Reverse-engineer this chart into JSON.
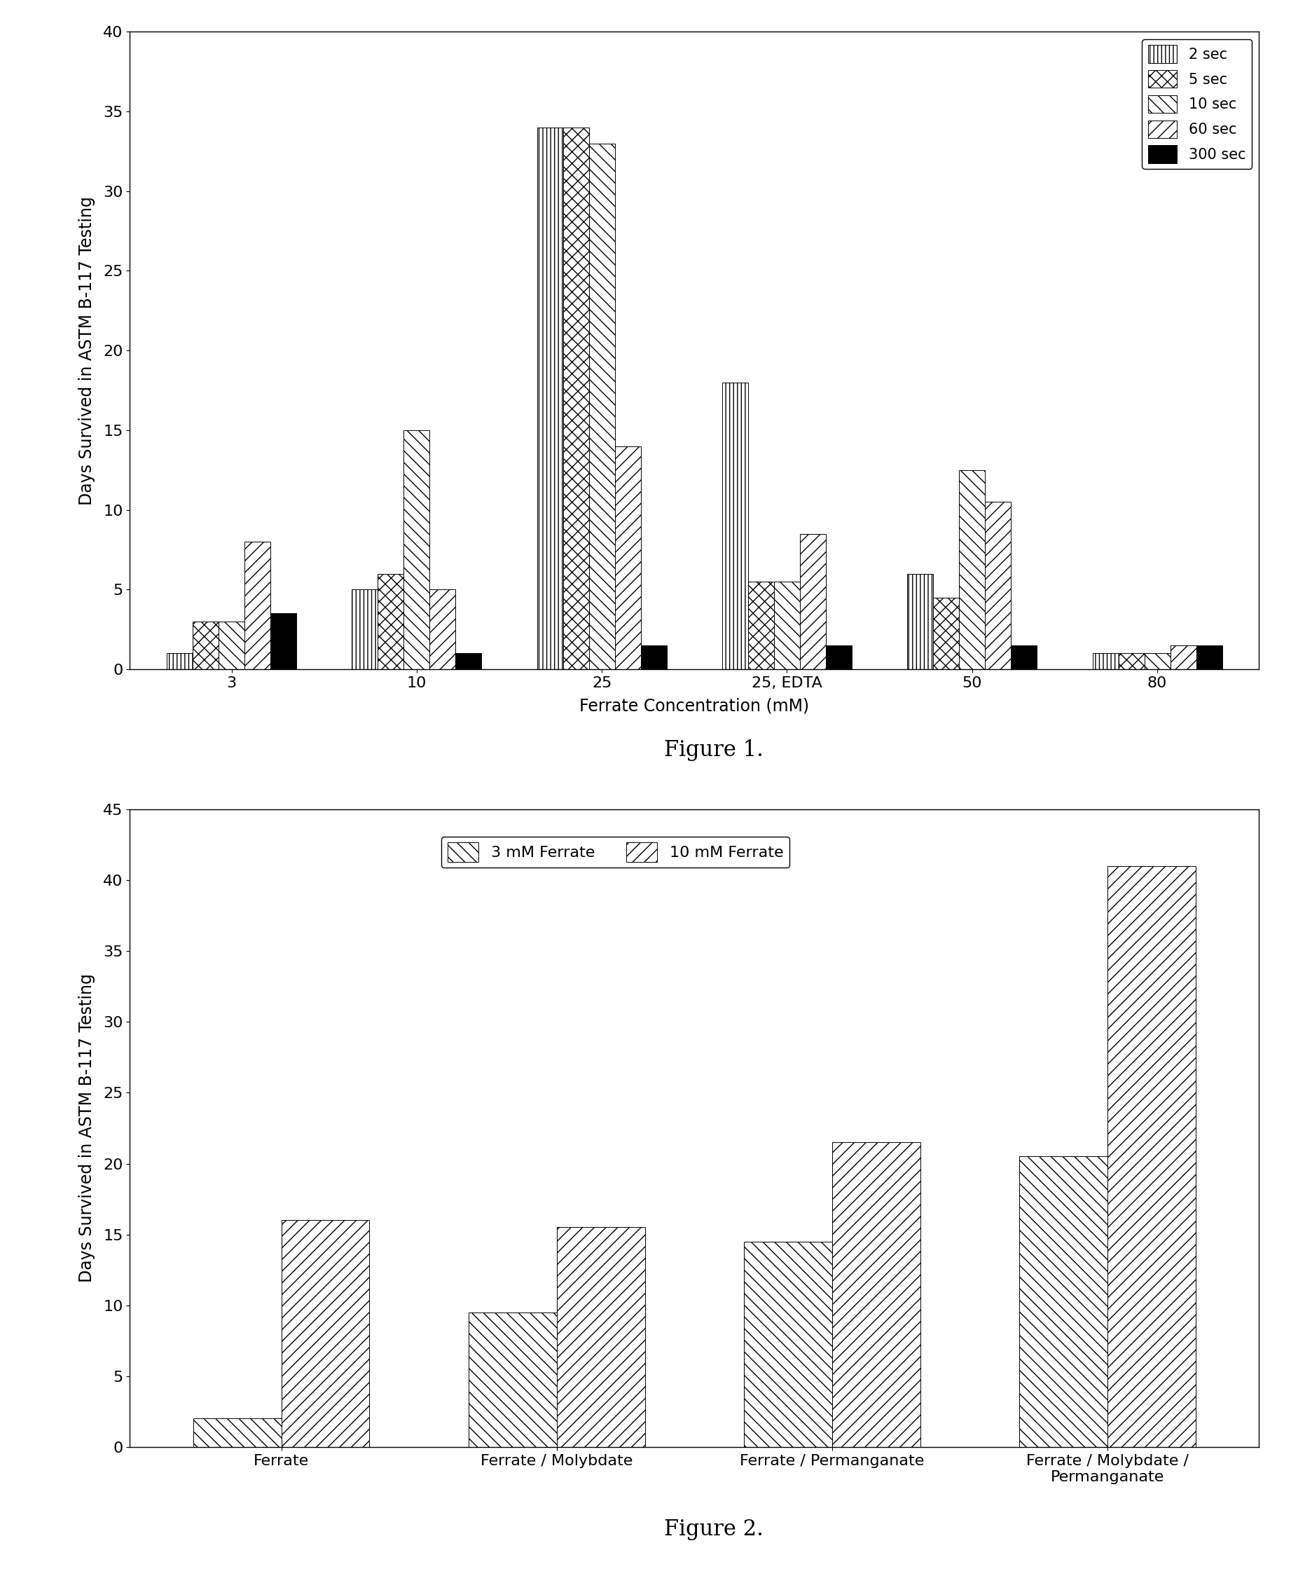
{
  "fig1": {
    "title": "Figure 1.",
    "xlabel": "Ferrate Concentration (mM)",
    "ylabel": "Days Survived in ASTM B-117 Testing",
    "ylim": [
      0,
      40
    ],
    "yticks": [
      0,
      5,
      10,
      15,
      20,
      25,
      30,
      35,
      40
    ],
    "categories": [
      "3",
      "10",
      "25",
      "25, EDTA",
      "50",
      "80"
    ],
    "series_labels": [
      "2 sec",
      "5 sec",
      "10 sec",
      "60 sec",
      "300 sec"
    ],
    "data": {
      "2 sec": [
        1,
        5,
        34,
        18,
        6,
        1
      ],
      "5 sec": [
        3,
        6,
        34,
        5.5,
        4.5,
        1
      ],
      "10 sec": [
        3,
        15,
        33,
        5.5,
        12.5,
        1
      ],
      "60 sec": [
        8,
        5,
        14,
        8.5,
        10.5,
        1.5
      ],
      "300 sec": [
        3.5,
        1,
        1.5,
        1.5,
        1.5,
        1.5
      ]
    },
    "bar_width": 0.14,
    "group_positions": [
      0,
      1,
      2,
      3,
      4,
      5
    ]
  },
  "fig2": {
    "title": "Figure 2.",
    "xlabel": "",
    "ylabel": "Days Survived in ASTM B-117 Testing",
    "ylim": [
      0,
      45
    ],
    "yticks": [
      0,
      5,
      10,
      15,
      20,
      25,
      30,
      35,
      40,
      45
    ],
    "categories": [
      "Ferrate",
      "Ferrate / Molybdate",
      "Ferrate / Permanganate",
      "Ferrate / Molybdate /\nPermanganate"
    ],
    "series_labels": [
      "3 mM Ferrate",
      "10 mM Ferrate"
    ],
    "data": {
      "3 mM Ferrate": [
        2,
        9.5,
        14.5,
        20.5
      ],
      "10 mM Ferrate": [
        16,
        15.5,
        21.5,
        41
      ]
    },
    "bar_width": 0.32,
    "group_positions": [
      0,
      1,
      2,
      3
    ]
  },
  "background_color": "#ffffff",
  "plot_bg_color": "#ffffff",
  "text_color": "#000000"
}
